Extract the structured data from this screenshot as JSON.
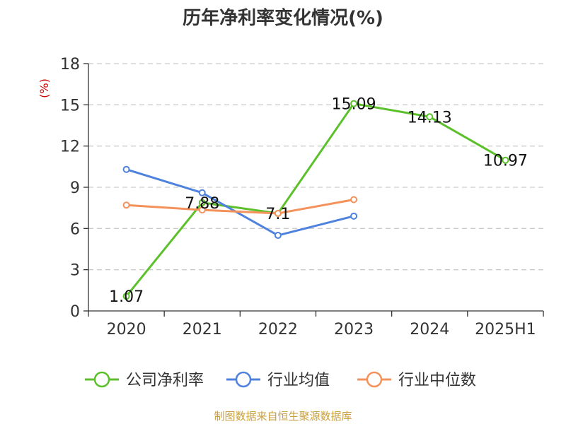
{
  "chart_data": {
    "type": "line",
    "title": "历年净利率变化情况(%)",
    "ylabel": "(%)",
    "categories": [
      "2020",
      "2021",
      "2022",
      "2023",
      "2024",
      "2025H1"
    ],
    "ylim": [
      0,
      18
    ],
    "yticks": [
      "0",
      "3",
      "6",
      "9",
      "12",
      "15",
      "18"
    ],
    "grid": true,
    "legend_position": "bottom",
    "series": [
      {
        "name": "公司净利率",
        "color": "#5cc02b",
        "show_labels": true,
        "values": [
          1.07,
          7.88,
          7.1,
          15.09,
          14.13,
          10.97
        ],
        "labels": [
          "1.07",
          "7.88",
          "7.1",
          "15.09",
          "14.13",
          "10.97"
        ]
      },
      {
        "name": "行业均值",
        "color": "#4f82dd",
        "show_labels": false,
        "values": [
          10.3,
          8.6,
          5.5,
          6.9,
          null,
          null
        ]
      },
      {
        "name": "行业中位数",
        "color": "#f4925c",
        "show_labels": false,
        "values": [
          7.7,
          7.35,
          7.1,
          8.1,
          null,
          null
        ]
      }
    ]
  },
  "source": "制图数据来自恒生聚源数据库",
  "colors": {
    "ylabel": "#cc0000",
    "source": "#c8a040",
    "axis": "#333333",
    "grid": "#cccccc"
  }
}
